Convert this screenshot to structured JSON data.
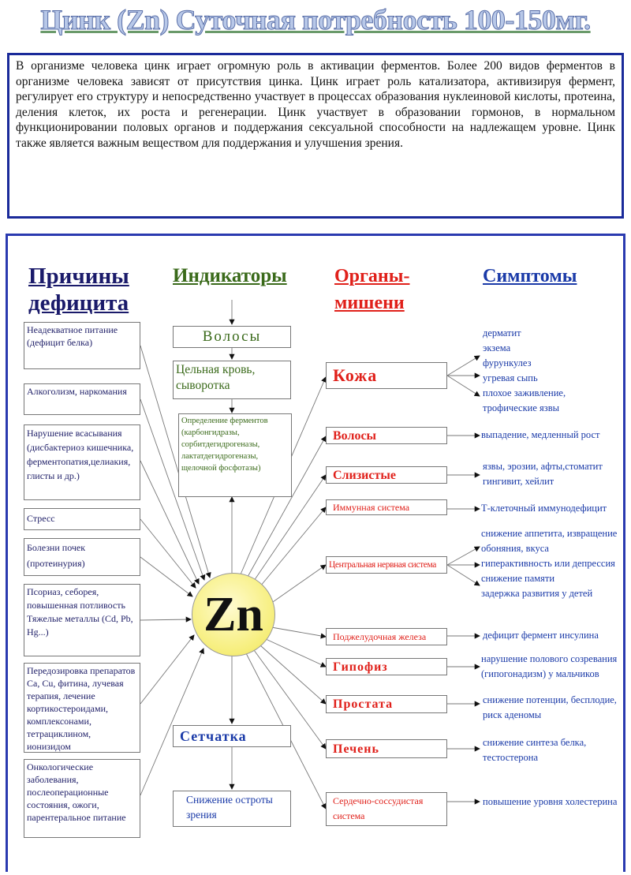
{
  "title": "Цинк (Zn) Суточная потребность 100-150мг.",
  "intro": "В организме человека цинк играет огромную роль в активации ферментов. Более 200 видов ферментов в организме человека зависят от присутствия цинка. Цинк играет роль катализатора, активизируя фермент, регулирует его структуру и непосредственно участвует в процессах образования нуклеиновой кислоты, протеина, деления клеток, их роста и регенерации. Цинк участвует в образовании гормонов, в нормальном функционировании половых органов и поддержания сексуальной способности на надлежащем уровне. Цинк также является важным веществом для поддержания и улучшения зрения.",
  "headers": {
    "causes": "Причины дефицита",
    "indicators": "Индикаторы",
    "organs": "Органы-мишени",
    "symptoms": "Симптомы"
  },
  "center": "Zn",
  "causes": [
    "Неадекватное питание (дефицит белка)",
    "Алкоголизм, наркомания",
    "Нарушение всасывания (дисбактериоз кишечника, ферментопатия,целиакия, глисты и др.)",
    "Стресс",
    "Болезни почек (протеинурия)",
    "Псориаз, себорея, повышенная потливость Тяжелые металлы (Cd, Pb, Hg...)",
    "Передозировка препаратов Ca, Cu, фитина, лучевая терапия, лечение кортикостероидами, комплексонами, тетрациклином, ионизидом",
    "Онкологические заболевания, послеоперационные состояния, ожоги, парентеральное питание"
  ],
  "indicators": [
    "Волосы",
    "Цельная кровь, сыворотка",
    "Определение ферментов (карбонгидразы, сорбитдегидрогеназы, лактатдегидрогеназы, щелочной фосфотазы)",
    "Сетчатка",
    "Снижение остроты зрения"
  ],
  "organs": [
    "Кожа",
    "Волосы",
    "Слизистые",
    "Иммунная система",
    "Центральная нервная система",
    "Поджелудочная железа",
    "Гипофиз",
    "Простата",
    "Печень",
    "Сердечно-соссудистая система"
  ],
  "symptoms": [
    [
      "дерматит",
      "экзема",
      "фурункулез",
      "угревая сыпь",
      "плохое заживление,",
      "трофические язвы"
    ],
    [
      "выпадение, медленный рост"
    ],
    [
      "язвы, эрозии, афты,стоматит",
      "гингивит, хейлит"
    ],
    [
      "Т-клеточный иммунодефицит"
    ],
    [
      "снижение аппетита, извращение",
      "обоняния, вкуса",
      "гиперактивность или депрессия",
      "снижение памяти",
      "задержка развития у детей"
    ],
    [
      "дефицит фермент инсулина"
    ],
    [
      "нарушение полового созревания",
      "(гипогонадизм) у мальчиков"
    ],
    [
      "снижение потенции, бесплодие,",
      "риск аденомы"
    ],
    [
      "снижение синтеза белка,",
      "тестостерона"
    ],
    [
      "повышение уровня холестерина"
    ]
  ],
  "colors": {
    "frame": "#2a3ab0",
    "causes": "#22226a",
    "indicators": "#3a6a1a",
    "organs": "#e0201a",
    "symptoms": "#1a3aa8",
    "zn": "#f6ee7a"
  }
}
